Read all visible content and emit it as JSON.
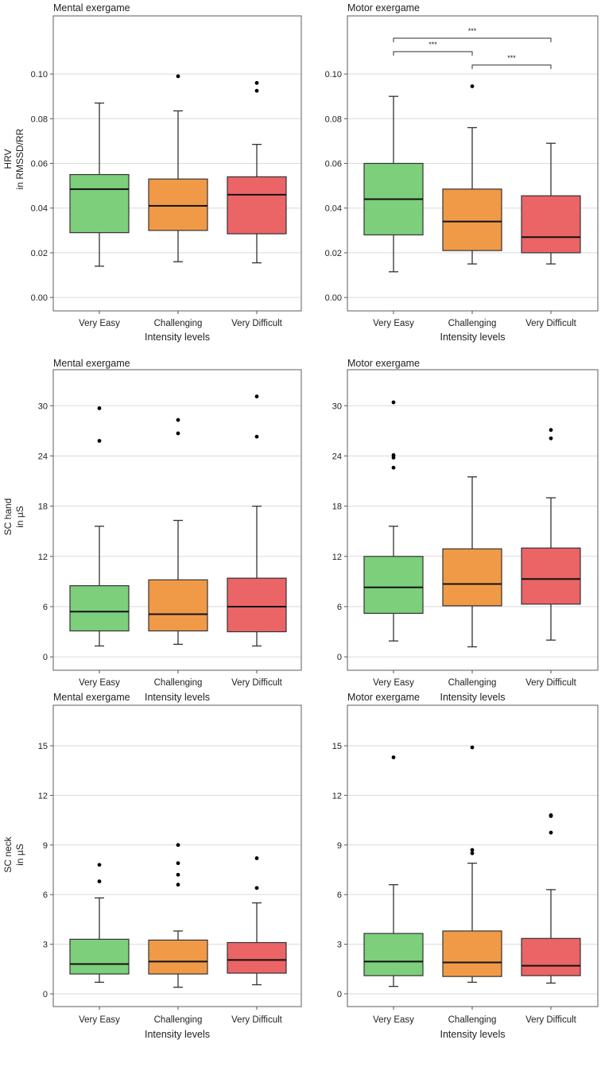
{
  "colors": {
    "Very Easy": "#7dcf7b",
    "Challenging": "#f09a48",
    "Very Difficult": "#eb6466",
    "grid": "#dadada",
    "frame": "#777777"
  },
  "chart_data": [
    {
      "type": "box",
      "title": "Mental exergame",
      "xlabel": "Intensity levels",
      "ylabel": [
        "HRV",
        "in RMSSD/RR"
      ],
      "categories": [
        "Very Easy",
        "Challenging",
        "Very Difficult"
      ],
      "ylim": [
        -0.006,
        0.126
      ],
      "yticks": [
        0.0,
        0.02,
        0.04,
        0.06,
        0.08,
        0.1
      ],
      "ytick_labels": [
        "0.00",
        "0.02",
        "0.04",
        "0.06",
        "0.08",
        "0.10"
      ],
      "grid": true,
      "boxes": [
        {
          "whislo": 0.014,
          "q1": 0.029,
          "med": 0.0485,
          "q3": 0.055,
          "whishi": 0.087,
          "fliers": []
        },
        {
          "whislo": 0.016,
          "q1": 0.03,
          "med": 0.041,
          "q3": 0.053,
          "whishi": 0.0835,
          "fliers": [
            0.099
          ]
        },
        {
          "whislo": 0.0155,
          "q1": 0.0285,
          "med": 0.046,
          "q3": 0.054,
          "whishi": 0.0685,
          "fliers": [
            0.096,
            0.0925
          ]
        }
      ],
      "significance": []
    },
    {
      "type": "box",
      "title": "Motor exergame",
      "xlabel": "Intensity levels",
      "ylabel": [],
      "categories": [
        "Very Easy",
        "Challenging",
        "Very Difficult"
      ],
      "ylim": [
        -0.006,
        0.126
      ],
      "yticks": [
        0.0,
        0.02,
        0.04,
        0.06,
        0.08,
        0.1
      ],
      "ytick_labels": [
        "0.00",
        "0.02",
        "0.04",
        "0.06",
        "0.08",
        "0.10"
      ],
      "grid": true,
      "boxes": [
        {
          "whislo": 0.0115,
          "q1": 0.028,
          "med": 0.044,
          "q3": 0.06,
          "whishi": 0.09,
          "fliers": []
        },
        {
          "whislo": 0.015,
          "q1": 0.021,
          "med": 0.034,
          "q3": 0.0485,
          "whishi": 0.076,
          "fliers": [
            0.0945
          ]
        },
        {
          "whislo": 0.015,
          "q1": 0.02,
          "med": 0.027,
          "q3": 0.0455,
          "whishi": 0.069,
          "fliers": []
        }
      ],
      "significance": [
        {
          "from": 0,
          "to": 1,
          "y": 0.11,
          "label": "***"
        },
        {
          "from": 0,
          "to": 2,
          "y": 0.116,
          "label": "***"
        },
        {
          "from": 1,
          "to": 2,
          "y": 0.104,
          "label": "***"
        }
      ]
    },
    {
      "type": "box",
      "title": "Mental exergame",
      "xlabel": "Intensity levels",
      "ylabel": [
        "SC hand",
        "in µS"
      ],
      "categories": [
        "Very Easy",
        "Challenging",
        "Very Difficult"
      ],
      "ylim": [
        -1.6,
        34.3
      ],
      "yticks": [
        0,
        6,
        12,
        18,
        24,
        30
      ],
      "ytick_labels": [
        "0",
        "6",
        "12",
        "18",
        "24",
        "30"
      ],
      "grid": true,
      "boxes": [
        {
          "whislo": 1.3,
          "q1": 3.1,
          "med": 5.4,
          "q3": 8.5,
          "whishi": 15.6,
          "fliers": [
            29.7,
            25.8
          ]
        },
        {
          "whislo": 1.5,
          "q1": 3.1,
          "med": 5.1,
          "q3": 9.2,
          "whishi": 16.3,
          "fliers": [
            28.3,
            26.7
          ]
        },
        {
          "whislo": 1.3,
          "q1": 3.0,
          "med": 6.0,
          "q3": 9.4,
          "whishi": 18.0,
          "fliers": [
            31.1,
            26.3
          ]
        }
      ],
      "significance": []
    },
    {
      "type": "box",
      "title": "Motor exergame",
      "xlabel": "Intensity levels",
      "ylabel": [],
      "categories": [
        "Very Easy",
        "Challenging",
        "Very Difficult"
      ],
      "ylim": [
        -1.6,
        34.3
      ],
      "yticks": [
        0,
        6,
        12,
        18,
        24,
        30
      ],
      "ytick_labels": [
        "0",
        "6",
        "12",
        "18",
        "24",
        "30"
      ],
      "grid": true,
      "boxes": [
        {
          "whislo": 1.9,
          "q1": 5.2,
          "med": 8.3,
          "q3": 12.0,
          "whishi": 15.6,
          "fliers": [
            30.4,
            24.1,
            23.8,
            22.6
          ]
        },
        {
          "whislo": 1.2,
          "q1": 6.1,
          "med": 8.7,
          "q3": 12.9,
          "whishi": 21.5,
          "fliers": []
        },
        {
          "whislo": 2.0,
          "q1": 6.3,
          "med": 9.3,
          "q3": 13.0,
          "whishi": 19.0,
          "fliers": [
            27.1,
            26.1
          ]
        }
      ],
      "significance": []
    },
    {
      "type": "box",
      "title": "Mental exergame",
      "xlabel": "Intensity levels",
      "ylabel": [
        "SC neck",
        "in µS"
      ],
      "categories": [
        "Very Easy",
        "Challenging",
        "Very Difficult"
      ],
      "ylim": [
        -0.77,
        17.45
      ],
      "yticks": [
        0,
        3,
        6,
        9,
        12,
        15
      ],
      "ytick_labels": [
        "0",
        "3",
        "6",
        "9",
        "12",
        "15"
      ],
      "grid": true,
      "boxes": [
        {
          "whislo": 0.7,
          "q1": 1.2,
          "med": 1.8,
          "q3": 3.3,
          "whishi": 5.8,
          "fliers": [
            7.8,
            6.8
          ]
        },
        {
          "whislo": 0.4,
          "q1": 1.2,
          "med": 1.95,
          "q3": 3.25,
          "whishi": 3.8,
          "fliers": [
            9.0,
            7.9,
            7.2,
            6.6
          ]
        },
        {
          "whislo": 0.55,
          "q1": 1.25,
          "med": 2.05,
          "q3": 3.1,
          "whishi": 5.5,
          "fliers": [
            8.2,
            6.4
          ]
        }
      ],
      "significance": []
    },
    {
      "type": "box",
      "title": "Motor exergame",
      "xlabel": "Intensity levels",
      "ylabel": [],
      "categories": [
        "Very Easy",
        "Challenging",
        "Very Difficult"
      ],
      "ylim": [
        -0.77,
        17.45
      ],
      "yticks": [
        0,
        3,
        6,
        9,
        12,
        15
      ],
      "ytick_labels": [
        "0",
        "3",
        "6",
        "9",
        "12",
        "15"
      ],
      "grid": true,
      "boxes": [
        {
          "whislo": 0.45,
          "q1": 1.1,
          "med": 1.95,
          "q3": 3.65,
          "whishi": 6.6,
          "fliers": [
            14.3
          ]
        },
        {
          "whislo": 0.7,
          "q1": 1.05,
          "med": 1.9,
          "q3": 3.8,
          "whishi": 7.9,
          "fliers": [
            14.9,
            8.7,
            8.5
          ]
        },
        {
          "whislo": 0.65,
          "q1": 1.1,
          "med": 1.7,
          "q3": 3.35,
          "whishi": 6.3,
          "fliers": [
            10.8,
            10.75,
            9.75
          ]
        }
      ],
      "significance": []
    }
  ]
}
